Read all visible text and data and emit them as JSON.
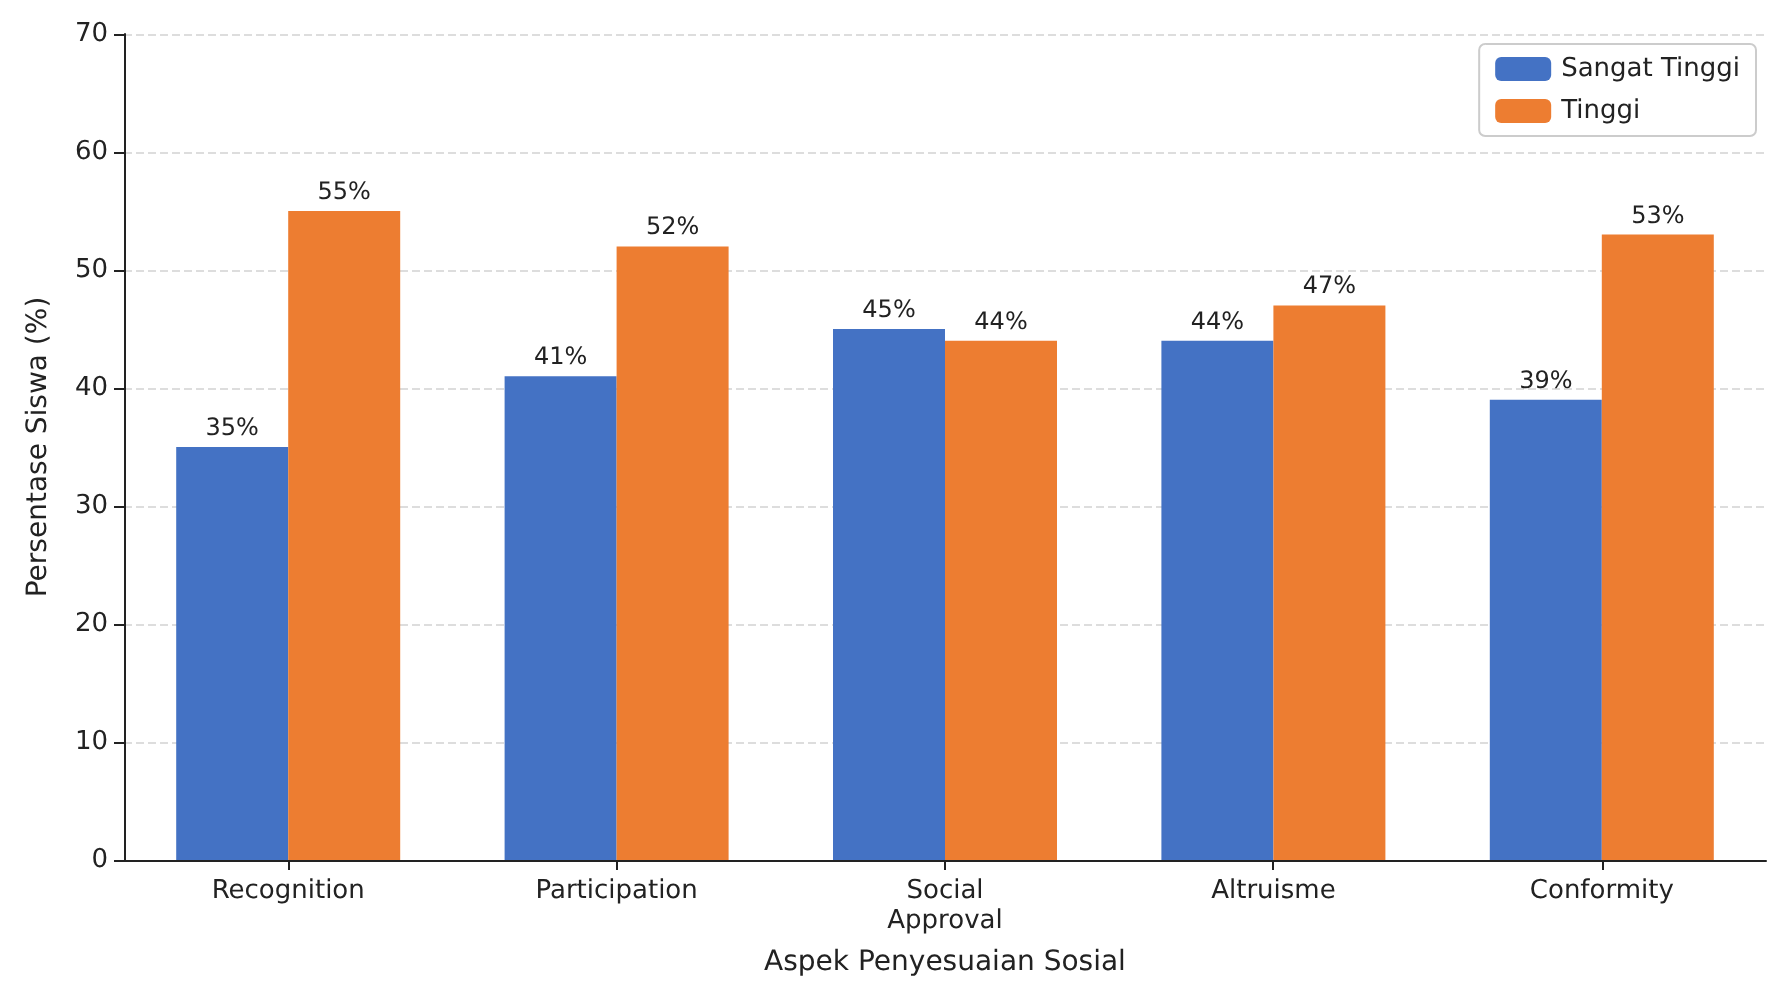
{
  "chart_data": {
    "type": "bar",
    "xlabel": "Aspek Penyesuaian Sosial",
    "ylabel": "Persentase Siswa (%)",
    "categories": [
      "Recognition",
      "Participation",
      "Social Approval",
      "Altruisme",
      "Conformity"
    ],
    "series": [
      {
        "name": "Sangat Tinggi",
        "color": "#4472c4",
        "values": [
          35,
          41,
          45,
          44,
          39
        ],
        "value_labels": [
          "35%",
          "41%",
          "45%",
          "44%",
          "39%"
        ]
      },
      {
        "name": "Tinggi",
        "color": "#ed7d31",
        "values": [
          55,
          52,
          44,
          47,
          53
        ],
        "value_labels": [
          "55%",
          "52%",
          "44%",
          "47%",
          "53%"
        ]
      }
    ],
    "ylim": [
      0,
      70
    ],
    "yticks": [
      0,
      10,
      20,
      30,
      40,
      50,
      60,
      70
    ],
    "grid": "y",
    "legend": "top right"
  }
}
